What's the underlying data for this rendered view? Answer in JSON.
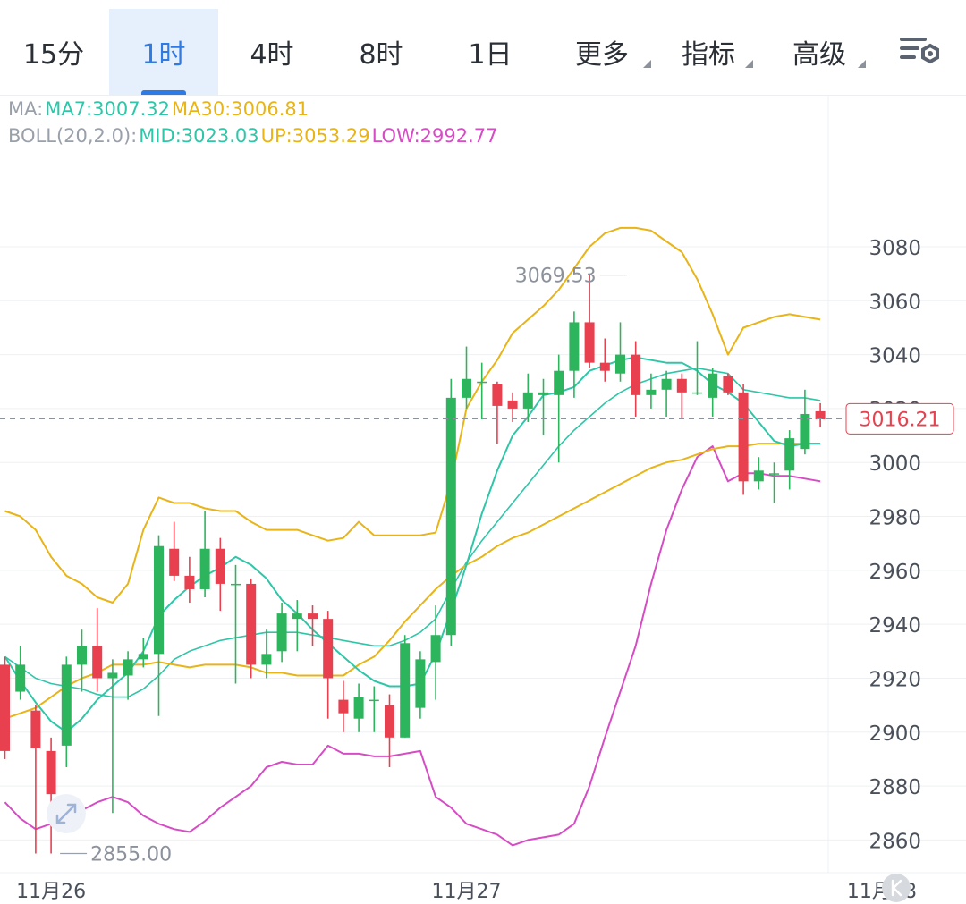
{
  "tabs": [
    {
      "label": "15分",
      "active": false,
      "dropdown": false
    },
    {
      "label": "1时",
      "active": true,
      "dropdown": false
    },
    {
      "label": "4时",
      "active": false,
      "dropdown": false
    },
    {
      "label": "8时",
      "active": false,
      "dropdown": false
    },
    {
      "label": "1日",
      "active": false,
      "dropdown": false
    },
    {
      "label": "更多",
      "active": false,
      "dropdown": true
    },
    {
      "label": "指标",
      "active": false,
      "dropdown": true
    },
    {
      "label": "高级",
      "active": false,
      "dropdown": true
    }
  ],
  "settings_icon": "chart-settings-icon",
  "legend": {
    "ma_label": "MA:",
    "ma7": "MA7:3007.32",
    "ma30": "MA30:3006.81",
    "boll_label": "BOLL(20,2.0):",
    "mid": "MID:3023.03",
    "up": "UP:3053.29",
    "low": "LOW:2992.77"
  },
  "colors": {
    "up": "#2db55d",
    "down": "#e8404f",
    "ma7": "#2fc6a8",
    "ma30": "#e8b417",
    "boll_mid": "#2fc6a8",
    "boll_up": "#e8b417",
    "boll_low": "#d64cc4",
    "accent": "#2f7be6"
  },
  "chart_data": {
    "type": "candlestick",
    "interval": "1时",
    "y_ticks": [
      3080,
      3060,
      3040,
      3020,
      3000,
      2980,
      2960,
      2940,
      2920,
      2900,
      2880,
      2860
    ],
    "x_labels": [
      {
        "index": 3,
        "label": "11月26"
      },
      {
        "index": 30,
        "label": "11月27"
      },
      {
        "index": 57,
        "label": "11月28"
      }
    ],
    "current_price": 3016.21,
    "current_price_label": "3016.21",
    "max_marker": {
      "index": 41,
      "value": 3069.53,
      "label": "3069.53"
    },
    "min_marker": {
      "index": 3,
      "value": 2855.0,
      "label": "2855.00"
    },
    "candles": [
      [
        2925,
        2893,
        2928,
        2890
      ],
      [
        2915,
        2925,
        2932,
        2912
      ],
      [
        2908,
        2894,
        2910,
        2855
      ],
      [
        2893,
        2877,
        2898,
        2855
      ],
      [
        2895,
        2925,
        2928,
        2887
      ],
      [
        2925,
        2932,
        2938,
        2915
      ],
      [
        2932,
        2920,
        2946,
        2915
      ],
      [
        2920,
        2922,
        2927,
        2870
      ],
      [
        2921,
        2927,
        2930,
        2912
      ],
      [
        2927,
        2929,
        2935,
        2924
      ],
      [
        2929,
        2969,
        2973,
        2906
      ],
      [
        2968,
        2958,
        2978,
        2956
      ],
      [
        2958,
        2953,
        2965,
        2948
      ],
      [
        2953,
        2968,
        2982,
        2950
      ],
      [
        2968,
        2955,
        2972,
        2945
      ],
      [
        2955,
        2955,
        2962,
        2918
      ],
      [
        2955,
        2925,
        2957,
        2920
      ],
      [
        2925,
        2929,
        2938,
        2920
      ],
      [
        2930,
        2944,
        2948,
        2926
      ],
      [
        2942,
        2944,
        2949,
        2930
      ],
      [
        2944,
        2942,
        2947,
        2932
      ],
      [
        2942,
        2920,
        2945,
        2905
      ],
      [
        2912,
        2907,
        2919,
        2900
      ],
      [
        2905,
        2913,
        2918,
        2900
      ],
      [
        2912,
        2912,
        2917,
        2900
      ],
      [
        2910,
        2898,
        2914,
        2887
      ],
      [
        2898,
        2933,
        2936,
        2898
      ],
      [
        2909,
        2927,
        2930,
        2905
      ],
      [
        2926,
        2936,
        2947,
        2912
      ],
      [
        2936,
        3024,
        3031,
        2932
      ],
      [
        3024,
        3031,
        3043,
        3020
      ],
      [
        3030,
        3030,
        3037,
        3016
      ],
      [
        3029,
        3021,
        3030,
        3007
      ],
      [
        3023,
        3020,
        3026,
        3015
      ],
      [
        3020,
        3026,
        3033,
        3015
      ],
      [
        3025,
        3026,
        3031,
        3010
      ],
      [
        3025,
        3034,
        3040,
        3000
      ],
      [
        3034,
        3052,
        3056,
        3024
      ],
      [
        3052,
        3037,
        3070,
        3035
      ],
      [
        3037,
        3034,
        3046,
        3030
      ],
      [
        3033,
        3040,
        3052,
        3030
      ],
      [
        3040,
        3025,
        3045,
        3017
      ],
      [
        3025,
        3027,
        3033,
        3020
      ],
      [
        3027,
        3031,
        3034,
        3017
      ],
      [
        3031,
        3026,
        3033,
        3016
      ],
      [
        3026,
        3026,
        3045,
        3025
      ],
      [
        3024,
        3033,
        3035,
        3017
      ],
      [
        3032,
        3026,
        3033,
        3025
      ],
      [
        3026,
        2993,
        3029,
        2988
      ],
      [
        2993,
        2997,
        3002,
        2990
      ],
      [
        2996,
        2996,
        3000,
        2985
      ],
      [
        2997,
        3009,
        3012,
        2990
      ],
      [
        3005,
        3018,
        3027,
        3003
      ],
      [
        3019,
        3016,
        3022,
        3013
      ]
    ],
    "boll_up": [
      2982,
      2980,
      2975,
      2965,
      2958,
      2955,
      2950,
      2948,
      2955,
      2975,
      2987,
      2985,
      2985,
      2983,
      2982,
      2982,
      2978,
      2975,
      2975,
      2975,
      2973,
      2971,
      2972,
      2978,
      2973,
      2973,
      2973,
      2973,
      2974,
      2993,
      3020,
      3030,
      3038,
      3048,
      3053,
      3058,
      3064,
      3072,
      3080,
      3085,
      3087,
      3087,
      3086,
      3082,
      3078,
      3068,
      3055,
      3040,
      3050,
      3052,
      3054,
      3055,
      3054,
      3053
    ],
    "boll_mid": [
      2928,
      2924,
      2920,
      2918,
      2917,
      2916,
      2914,
      2913,
      2913,
      2916,
      2921,
      2927,
      2930,
      2932,
      2934,
      2935,
      2936,
      2937,
      2937,
      2937,
      2936,
      2935,
      2934,
      2933,
      2932,
      2932,
      2934,
      2937,
      2942,
      2953,
      2963,
      2971,
      2978,
      2985,
      2992,
      2999,
      3006,
      3012,
      3017,
      3022,
      3026,
      3029,
      3031,
      3033,
      3034,
      3035,
      3034,
      3033,
      3027,
      3026,
      3025,
      3024,
      3024,
      3023
    ],
    "boll_low": [
      2874,
      2868,
      2864,
      2866,
      2868,
      2871,
      2874,
      2876,
      2874,
      2869,
      2866,
      2864,
      2863,
      2867,
      2872,
      2876,
      2880,
      2887,
      2889,
      2888,
      2888,
      2895,
      2892,
      2892,
      2891,
      2891,
      2892,
      2893,
      2876,
      2872,
      2866,
      2864,
      2862,
      2858,
      2860,
      2861,
      2862,
      2866,
      2880,
      2898,
      2915,
      2932,
      2955,
      2975,
      2990,
      3002,
      3006,
      2993,
      2996,
      2996,
      2995,
      2995,
      2994,
      2993
    ],
    "ma7": [
      2928,
      2919,
      2911,
      2904,
      2900,
      2905,
      2912,
      2917,
      2922,
      2930,
      2943,
      2949,
      2954,
      2958,
      2961,
      2965,
      2962,
      2957,
      2949,
      2944,
      2938,
      2933,
      2928,
      2923,
      2919,
      2917,
      2917,
      2918,
      2929,
      2945,
      2962,
      2981,
      2997,
      3010,
      3017,
      3025,
      3026,
      3028,
      3034,
      3036,
      3038,
      3039,
      3038,
      3037,
      3037,
      3034,
      3029,
      3026,
      3022,
      3015,
      3008,
      3006,
      3007,
      3007
    ],
    "ma30": [
      2905,
      2907,
      2909,
      2913,
      2917,
      2920,
      2922,
      2925,
      2925,
      2925,
      2926,
      2925,
      2924,
      2925,
      2925,
      2925,
      2924,
      2922,
      2922,
      2921,
      2921,
      2921,
      2921,
      2925,
      2928,
      2934,
      2941,
      2947,
      2953,
      2958,
      2962,
      2965,
      2969,
      2972,
      2974,
      2977,
      2980,
      2983,
      2986,
      2989,
      2992,
      2995,
      2998,
      3000,
      3001,
      3003,
      3005,
      3006,
      3006,
      3007,
      3007,
      3007,
      3007,
      3007
    ]
  }
}
